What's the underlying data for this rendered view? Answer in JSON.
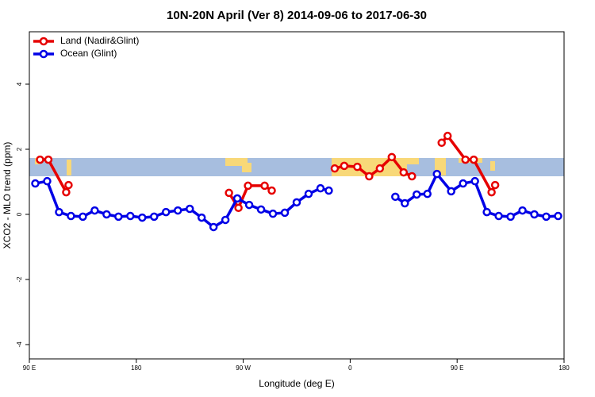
{
  "chart_data": {
    "type": "line",
    "title": "10N-20N April (Ver 8)   2014-09-06 to 2017-06-30",
    "x_label": "Longitude (deg E)",
    "y_label": "XCO2 - MLO trend (ppm)",
    "xlim": [
      90,
      540
    ],
    "ylim": [
      -4.44,
      5.61
    ],
    "xticks": [
      {
        "value": 90,
        "label": "90 E"
      },
      180,
      {
        "value": 270,
        "label": "90 W"
      },
      {
        "value": 360,
        "label": "0"
      },
      {
        "value": 450,
        "label": "90 E"
      },
      {
        "value": 540,
        "label": "180"
      }
    ],
    "yticks": [
      -4,
      -2,
      0,
      2,
      4
    ],
    "legend": "top-left",
    "series": [
      {
        "name": "Land (Nadir&Glint)",
        "color": "#e60000",
        "x": [
          99,
          106,
          121,
          123,
          null,
          258,
          266,
          274,
          288,
          294,
          null,
          347,
          355,
          366,
          376,
          385,
          395,
          405,
          412,
          null,
          437,
          442,
          457,
          464,
          479,
          482
        ],
        "values": [
          1.68,
          1.68,
          0.68,
          0.9,
          null,
          0.66,
          0.2,
          0.88,
          0.88,
          0.73,
          null,
          1.41,
          1.49,
          1.46,
          1.17,
          1.41,
          1.76,
          1.29,
          1.17,
          null,
          2.2,
          2.41,
          1.68,
          1.68,
          0.68,
          0.9
        ]
      },
      {
        "name": "Ocean (Glint)",
        "color": "#0000e6",
        "x": [
          95,
          105,
          115,
          125,
          135,
          145,
          155,
          165,
          175,
          185,
          195,
          205,
          215,
          225,
          235,
          245,
          255,
          265,
          275,
          285,
          295,
          305,
          315,
          325,
          335,
          342,
          null,
          398,
          406,
          416,
          425,
          433,
          445,
          455,
          465,
          475,
          485,
          495,
          505,
          515,
          525,
          535
        ],
        "values": [
          0.95,
          1.02,
          0.07,
          -0.05,
          -0.07,
          0.12,
          0,
          -0.07,
          -0.05,
          -0.1,
          -0.07,
          0.07,
          0.12,
          0.17,
          -0.1,
          -0.39,
          -0.17,
          0.49,
          0.29,
          0.15,
          0.02,
          0.05,
          0.37,
          0.63,
          0.8,
          0.73,
          null,
          0.54,
          0.34,
          0.61,
          0.63,
          1.24,
          0.71,
          0.95,
          1.02,
          0.07,
          -0.05,
          -0.07,
          0.12,
          0,
          -0.07,
          -0.05
        ]
      }
    ]
  }
}
